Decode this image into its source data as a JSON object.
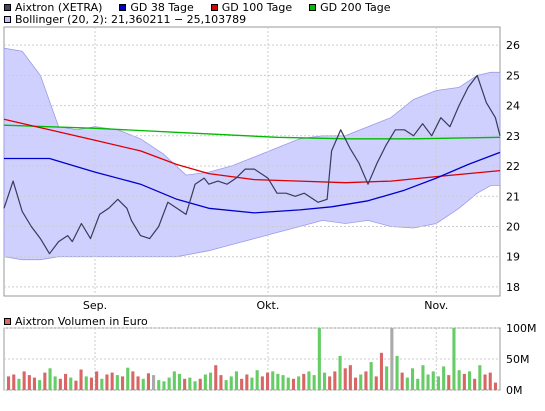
{
  "legend": {
    "main": [
      {
        "label": "Aixtron (XETRA)",
        "color": "#444466"
      },
      {
        "label": "GD 38 Tage",
        "color": "#0000cc"
      },
      {
        "label": "GD 100 Tage",
        "color": "#dd0000"
      },
      {
        "label": "GD 200 Tage",
        "color": "#00bb00"
      }
    ],
    "bollinger": {
      "label": "Bollinger (20, 2): 21,360211 − 25,103789",
      "color": "#c0c0ff"
    },
    "volume": {
      "label": "Aixtron Volumen in Euro",
      "color": "#dd6666"
    }
  },
  "chart_data": [
    {
      "type": "line",
      "grid": true,
      "x_labels": [
        "Sep.",
        "Okt.",
        "Nov."
      ],
      "y_ticks": [
        18,
        19,
        20,
        21,
        22,
        23,
        24,
        25,
        26
      ],
      "ylim": [
        17.7,
        26.6
      ],
      "n": 110,
      "series": [
        {
          "name": "Aixtron (XETRA)",
          "color": "#3a3a5a",
          "points": [
            [
              0,
              20.6
            ],
            [
              2,
              21.5
            ],
            [
              4,
              20.5
            ],
            [
              6,
              20.0
            ],
            [
              8,
              19.6
            ],
            [
              10,
              19.1
            ],
            [
              12,
              19.5
            ],
            [
              14,
              19.7
            ],
            [
              15,
              19.5
            ],
            [
              17,
              20.1
            ],
            [
              19,
              19.6
            ],
            [
              21,
              20.4
            ],
            [
              23,
              20.6
            ],
            [
              25,
              20.9
            ],
            [
              27,
              20.6
            ],
            [
              28,
              20.2
            ],
            [
              30,
              19.7
            ],
            [
              32,
              19.6
            ],
            [
              34,
              20.0
            ],
            [
              36,
              20.8
            ],
            [
              38,
              20.6
            ],
            [
              40,
              20.4
            ],
            [
              42,
              21.4
            ],
            [
              44,
              21.6
            ],
            [
              45,
              21.4
            ],
            [
              47,
              21.5
            ],
            [
              49,
              21.4
            ],
            [
              51,
              21.6
            ],
            [
              53,
              21.9
            ],
            [
              55,
              21.9
            ],
            [
              57,
              21.7
            ],
            [
              58,
              21.6
            ],
            [
              60,
              21.1
            ],
            [
              62,
              21.1
            ],
            [
              64,
              21.0
            ],
            [
              66,
              21.1
            ],
            [
              67,
              21.0
            ],
            [
              69,
              20.8
            ],
            [
              71,
              20.9
            ],
            [
              72,
              22.5
            ],
            [
              74,
              23.2
            ],
            [
              76,
              22.6
            ],
            [
              78,
              22.1
            ],
            [
              80,
              21.4
            ],
            [
              82,
              22.1
            ],
            [
              84,
              22.7
            ],
            [
              86,
              23.2
            ],
            [
              88,
              23.2
            ],
            [
              90,
              23.0
            ],
            [
              92,
              23.4
            ],
            [
              94,
              23.0
            ],
            [
              96,
              23.6
            ],
            [
              98,
              23.3
            ],
            [
              100,
              24.0
            ],
            [
              102,
              24.6
            ],
            [
              104,
              25.0
            ],
            [
              106,
              24.1
            ],
            [
              108,
              23.6
            ],
            [
              109,
              23.0
            ]
          ]
        },
        {
          "name": "GD 38 Tage",
          "color": "#0000cc",
          "points": [
            [
              0,
              22.25
            ],
            [
              10,
              22.25
            ],
            [
              20,
              21.8
            ],
            [
              30,
              21.4
            ],
            [
              38,
              20.9
            ],
            [
              45,
              20.6
            ],
            [
              55,
              20.45
            ],
            [
              65,
              20.55
            ],
            [
              72,
              20.65
            ],
            [
              80,
              20.85
            ],
            [
              88,
              21.2
            ],
            [
              95,
              21.6
            ],
            [
              102,
              22.05
            ],
            [
              109,
              22.45
            ]
          ]
        },
        {
          "name": "GD 100 Tage",
          "color": "#dd0000",
          "points": [
            [
              0,
              23.55
            ],
            [
              10,
              23.2
            ],
            [
              20,
              22.85
            ],
            [
              30,
              22.5
            ],
            [
              38,
              22.05
            ],
            [
              45,
              21.75
            ],
            [
              55,
              21.55
            ],
            [
              65,
              21.5
            ],
            [
              75,
              21.45
            ],
            [
              85,
              21.5
            ],
            [
              95,
              21.65
            ],
            [
              109,
              21.85
            ]
          ]
        },
        {
          "name": "GD 200 Tage",
          "color": "#00bb00",
          "points": [
            [
              0,
              23.35
            ],
            [
              20,
              23.25
            ],
            [
              40,
              23.1
            ],
            [
              60,
              22.95
            ],
            [
              75,
              22.9
            ],
            [
              90,
              22.9
            ],
            [
              109,
              22.95
            ]
          ]
        }
      ],
      "bands": {
        "name": "Bollinger (20, 2)",
        "color": "#c8c8ff",
        "upper": [
          [
            0,
            25.9
          ],
          [
            4,
            25.8
          ],
          [
            8,
            25.0
          ],
          [
            12,
            23.3
          ],
          [
            16,
            23.2
          ],
          [
            20,
            23.3
          ],
          [
            25,
            23.2
          ],
          [
            30,
            22.9
          ],
          [
            35,
            22.4
          ],
          [
            40,
            21.7
          ],
          [
            45,
            21.8
          ],
          [
            50,
            22.0
          ],
          [
            55,
            22.3
          ],
          [
            60,
            22.6
          ],
          [
            65,
            22.9
          ],
          [
            70,
            23.0
          ],
          [
            75,
            23.0
          ],
          [
            80,
            23.3
          ],
          [
            85,
            23.6
          ],
          [
            90,
            24.2
          ],
          [
            95,
            24.5
          ],
          [
            100,
            24.6
          ],
          [
            104,
            25.0
          ],
          [
            107,
            25.1
          ],
          [
            109,
            25.1
          ]
        ],
        "lower": [
          [
            0,
            19.0
          ],
          [
            4,
            18.9
          ],
          [
            8,
            18.9
          ],
          [
            12,
            19.0
          ],
          [
            20,
            19.0
          ],
          [
            30,
            19.0
          ],
          [
            38,
            19.0
          ],
          [
            45,
            19.2
          ],
          [
            50,
            19.4
          ],
          [
            55,
            19.6
          ],
          [
            60,
            19.8
          ],
          [
            65,
            20.0
          ],
          [
            70,
            20.2
          ],
          [
            75,
            20.1
          ],
          [
            80,
            20.2
          ],
          [
            85,
            20.0
          ],
          [
            90,
            19.95
          ],
          [
            95,
            20.1
          ],
          [
            100,
            20.6
          ],
          [
            104,
            21.1
          ],
          [
            107,
            21.36
          ],
          [
            109,
            21.36
          ]
        ]
      }
    },
    {
      "type": "bar",
      "name": "Aixtron Volumen in Euro",
      "y_ticks": [
        "0M",
        "50M",
        "100M"
      ],
      "ylim": [
        0,
        100
      ],
      "colors": {
        "down": "#d96666",
        "up": "#66cc66",
        "neutral": "#aaaaaa"
      },
      "bars": [
        {
          "v": 22,
          "c": "down"
        },
        {
          "v": 25,
          "c": "down"
        },
        {
          "v": 18,
          "c": "up"
        },
        {
          "v": 30,
          "c": "down"
        },
        {
          "v": 24,
          "c": "down"
        },
        {
          "v": 20,
          "c": "down"
        },
        {
          "v": 16,
          "c": "up"
        },
        {
          "v": 28,
          "c": "down"
        },
        {
          "v": 35,
          "c": "up"
        },
        {
          "v": 22,
          "c": "up"
        },
        {
          "v": 18,
          "c": "down"
        },
        {
          "v": 26,
          "c": "down"
        },
        {
          "v": 20,
          "c": "up"
        },
        {
          "v": 15,
          "c": "down"
        },
        {
          "v": 33,
          "c": "down"
        },
        {
          "v": 22,
          "c": "up"
        },
        {
          "v": 20,
          "c": "down"
        },
        {
          "v": 30,
          "c": "down"
        },
        {
          "v": 18,
          "c": "up"
        },
        {
          "v": 25,
          "c": "down"
        },
        {
          "v": 28,
          "c": "down"
        },
        {
          "v": 24,
          "c": "up"
        },
        {
          "v": 22,
          "c": "down"
        },
        {
          "v": 36,
          "c": "up"
        },
        {
          "v": 30,
          "c": "down"
        },
        {
          "v": 22,
          "c": "down"
        },
        {
          "v": 18,
          "c": "up"
        },
        {
          "v": 27,
          "c": "down"
        },
        {
          "v": 24,
          "c": "neutral"
        },
        {
          "v": 16,
          "c": "up"
        },
        {
          "v": 14,
          "c": "up"
        },
        {
          "v": 20,
          "c": "up"
        },
        {
          "v": 30,
          "c": "up"
        },
        {
          "v": 26,
          "c": "up"
        },
        {
          "v": 18,
          "c": "down"
        },
        {
          "v": 20,
          "c": "up"
        },
        {
          "v": 14,
          "c": "up"
        },
        {
          "v": 18,
          "c": "down"
        },
        {
          "v": 25,
          "c": "up"
        },
        {
          "v": 28,
          "c": "up"
        },
        {
          "v": 40,
          "c": "down"
        },
        {
          "v": 24,
          "c": "down"
        },
        {
          "v": 16,
          "c": "up"
        },
        {
          "v": 22,
          "c": "up"
        },
        {
          "v": 30,
          "c": "up"
        },
        {
          "v": 18,
          "c": "down"
        },
        {
          "v": 25,
          "c": "down"
        },
        {
          "v": 20,
          "c": "up"
        },
        {
          "v": 32,
          "c": "up"
        },
        {
          "v": 22,
          "c": "down"
        },
        {
          "v": 28,
          "c": "down"
        },
        {
          "v": 30,
          "c": "up"
        },
        {
          "v": 26,
          "c": "up"
        },
        {
          "v": 24,
          "c": "up"
        },
        {
          "v": 20,
          "c": "up"
        },
        {
          "v": 18,
          "c": "down"
        },
        {
          "v": 22,
          "c": "up"
        },
        {
          "v": 26,
          "c": "down"
        },
        {
          "v": 30,
          "c": "up"
        },
        {
          "v": 24,
          "c": "up"
        },
        {
          "v": 100,
          "c": "up"
        },
        {
          "v": 28,
          "c": "up"
        },
        {
          "v": 22,
          "c": "down"
        },
        {
          "v": 30,
          "c": "down"
        },
        {
          "v": 55,
          "c": "up"
        },
        {
          "v": 35,
          "c": "down"
        },
        {
          "v": 40,
          "c": "down"
        },
        {
          "v": 20,
          "c": "down"
        },
        {
          "v": 25,
          "c": "up"
        },
        {
          "v": 30,
          "c": "down"
        },
        {
          "v": 45,
          "c": "up"
        },
        {
          "v": 22,
          "c": "down"
        },
        {
          "v": 60,
          "c": "down"
        },
        {
          "v": 38,
          "c": "up"
        },
        {
          "v": 100,
          "c": "neutral"
        },
        {
          "v": 55,
          "c": "up"
        },
        {
          "v": 28,
          "c": "down"
        },
        {
          "v": 20,
          "c": "up"
        },
        {
          "v": 35,
          "c": "up"
        },
        {
          "v": 18,
          "c": "up"
        },
        {
          "v": 40,
          "c": "up"
        },
        {
          "v": 25,
          "c": "up"
        },
        {
          "v": 30,
          "c": "up"
        },
        {
          "v": 22,
          "c": "up"
        },
        {
          "v": 38,
          "c": "up"
        },
        {
          "v": 24,
          "c": "down"
        },
        {
          "v": 100,
          "c": "up"
        },
        {
          "v": 32,
          "c": "up"
        },
        {
          "v": 26,
          "c": "down"
        },
        {
          "v": 30,
          "c": "up"
        },
        {
          "v": 18,
          "c": "down"
        },
        {
          "v": 40,
          "c": "up"
        },
        {
          "v": 25,
          "c": "down"
        },
        {
          "v": 28,
          "c": "down"
        },
        {
          "v": 12,
          "c": "down"
        }
      ]
    }
  ]
}
